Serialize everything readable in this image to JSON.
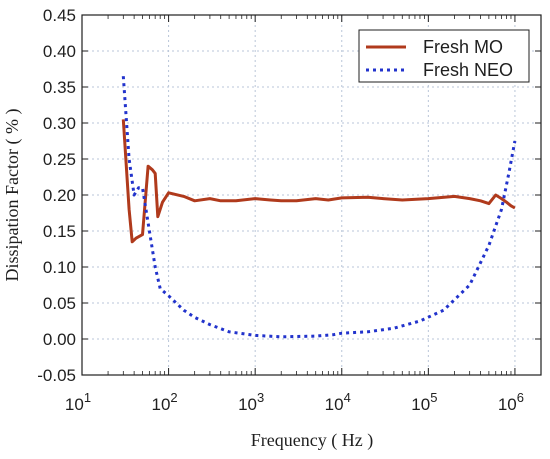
{
  "chart_data": {
    "type": "line",
    "title": "",
    "xlabel": "Frequency ( Hz )",
    "ylabel": "Dissipation Factor ( % )",
    "x_scale": "log",
    "xlim": [
      10,
      2000000
    ],
    "ylim": [
      -0.05,
      0.45
    ],
    "x_tick_labels": [
      {
        "value": 10,
        "base": "10",
        "exp": "1"
      },
      {
        "value": 100,
        "base": "10",
        "exp": "2"
      },
      {
        "value": 1000,
        "base": "10",
        "exp": "3"
      },
      {
        "value": 10000,
        "base": "10",
        "exp": "4"
      },
      {
        "value": 100000,
        "base": "10",
        "exp": "5"
      },
      {
        "value": 1000000,
        "base": "10",
        "exp": "6"
      }
    ],
    "y_ticks": [
      -0.05,
      0.0,
      0.05,
      0.1,
      0.15,
      0.2,
      0.25,
      0.3,
      0.35,
      0.4,
      0.45
    ],
    "y_tick_labels": [
      "-0.05",
      "0.00",
      "0.05",
      "0.10",
      "0.15",
      "0.20",
      "0.25",
      "0.30",
      "0.35",
      "0.40",
      "0.45"
    ],
    "grid": true,
    "legend_position": "top-right",
    "series": [
      {
        "name": "Fresh MO",
        "color": "#b03a1c",
        "style": "solid",
        "points": [
          [
            30,
            0.305
          ],
          [
            35,
            0.18
          ],
          [
            38,
            0.135
          ],
          [
            42,
            0.14
          ],
          [
            50,
            0.145
          ],
          [
            58,
            0.24
          ],
          [
            65,
            0.235
          ],
          [
            70,
            0.23
          ],
          [
            75,
            0.17
          ],
          [
            85,
            0.19
          ],
          [
            100,
            0.203
          ],
          [
            150,
            0.198
          ],
          [
            200,
            0.192
          ],
          [
            300,
            0.195
          ],
          [
            400,
            0.192
          ],
          [
            600,
            0.192
          ],
          [
            1000,
            0.195
          ],
          [
            1500,
            0.193
          ],
          [
            2000,
            0.192
          ],
          [
            3000,
            0.192
          ],
          [
            5000,
            0.195
          ],
          [
            7000,
            0.193
          ],
          [
            10000,
            0.196
          ],
          [
            20000,
            0.197
          ],
          [
            30000,
            0.195
          ],
          [
            50000,
            0.193
          ],
          [
            100000,
            0.195
          ],
          [
            200000,
            0.198
          ],
          [
            300000,
            0.195
          ],
          [
            400000,
            0.192
          ],
          [
            500000,
            0.188
          ],
          [
            600000,
            0.2
          ],
          [
            700000,
            0.195
          ],
          [
            800000,
            0.19
          ],
          [
            900000,
            0.185
          ],
          [
            1000000,
            0.182
          ]
        ]
      },
      {
        "name": "Fresh NEO",
        "color": "#2233cc",
        "style": "dotted",
        "points": [
          [
            30,
            0.365
          ],
          [
            35,
            0.25
          ],
          [
            40,
            0.2
          ],
          [
            45,
            0.21
          ],
          [
            50,
            0.21
          ],
          [
            60,
            0.15
          ],
          [
            70,
            0.1
          ],
          [
            80,
            0.07
          ],
          [
            100,
            0.06
          ],
          [
            150,
            0.04
          ],
          [
            200,
            0.03
          ],
          [
            300,
            0.02
          ],
          [
            500,
            0.01
          ],
          [
            1000,
            0.005
          ],
          [
            2000,
            0.003
          ],
          [
            5000,
            0.004
          ],
          [
            8000,
            0.006
          ],
          [
            10000,
            0.008
          ],
          [
            20000,
            0.01
          ],
          [
            40000,
            0.015
          ],
          [
            80000,
            0.025
          ],
          [
            150000,
            0.04
          ],
          [
            300000,
            0.075
          ],
          [
            500000,
            0.13
          ],
          [
            700000,
            0.18
          ],
          [
            850000,
            0.23
          ],
          [
            1000000,
            0.275
          ]
        ]
      }
    ]
  }
}
